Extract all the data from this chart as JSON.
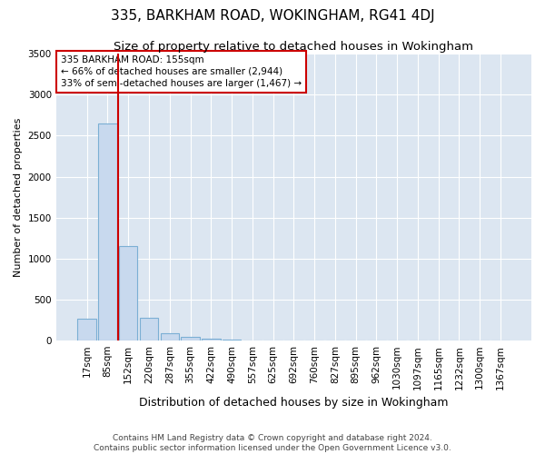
{
  "title": "335, BARKHAM ROAD, WOKINGHAM, RG41 4DJ",
  "subtitle": "Size of property relative to detached houses in Wokingham",
  "xlabel": "Distribution of detached houses by size in Wokingham",
  "ylabel": "Number of detached properties",
  "footer_line1": "Contains HM Land Registry data © Crown copyright and database right 2024.",
  "footer_line2": "Contains public sector information licensed under the Open Government Licence v3.0.",
  "bar_labels": [
    "17sqm",
    "85sqm",
    "152sqm",
    "220sqm",
    "287sqm",
    "355sqm",
    "422sqm",
    "490sqm",
    "557sqm",
    "625sqm",
    "692sqm",
    "760sqm",
    "827sqm",
    "895sqm",
    "962sqm",
    "1030sqm",
    "1097sqm",
    "1165sqm",
    "1232sqm",
    "1300sqm",
    "1367sqm"
  ],
  "bar_values": [
    270,
    2650,
    1150,
    280,
    90,
    50,
    20,
    10,
    5,
    3,
    2,
    2,
    1,
    1,
    1,
    1,
    0,
    0,
    0,
    0,
    0
  ],
  "bar_color": "#c8d9ee",
  "bar_edge_color": "#7bafd4",
  "plot_bg_color": "#dce6f1",
  "annotation_text": "335 BARKHAM ROAD: 155sqm\n← 66% of detached houses are smaller (2,944)\n33% of semi-detached houses are larger (1,467) →",
  "vline_x": 1.5,
  "vline_color": "#cc0000",
  "annotation_box_color": "#cc0000",
  "ylim": [
    0,
    3500
  ],
  "yticks": [
    0,
    500,
    1000,
    1500,
    2000,
    2500,
    3000,
    3500
  ],
  "title_fontsize": 11,
  "subtitle_fontsize": 9.5,
  "xlabel_fontsize": 9,
  "ylabel_fontsize": 8,
  "tick_fontsize": 7.5,
  "annotation_fontsize": 7.5,
  "footer_fontsize": 6.5
}
